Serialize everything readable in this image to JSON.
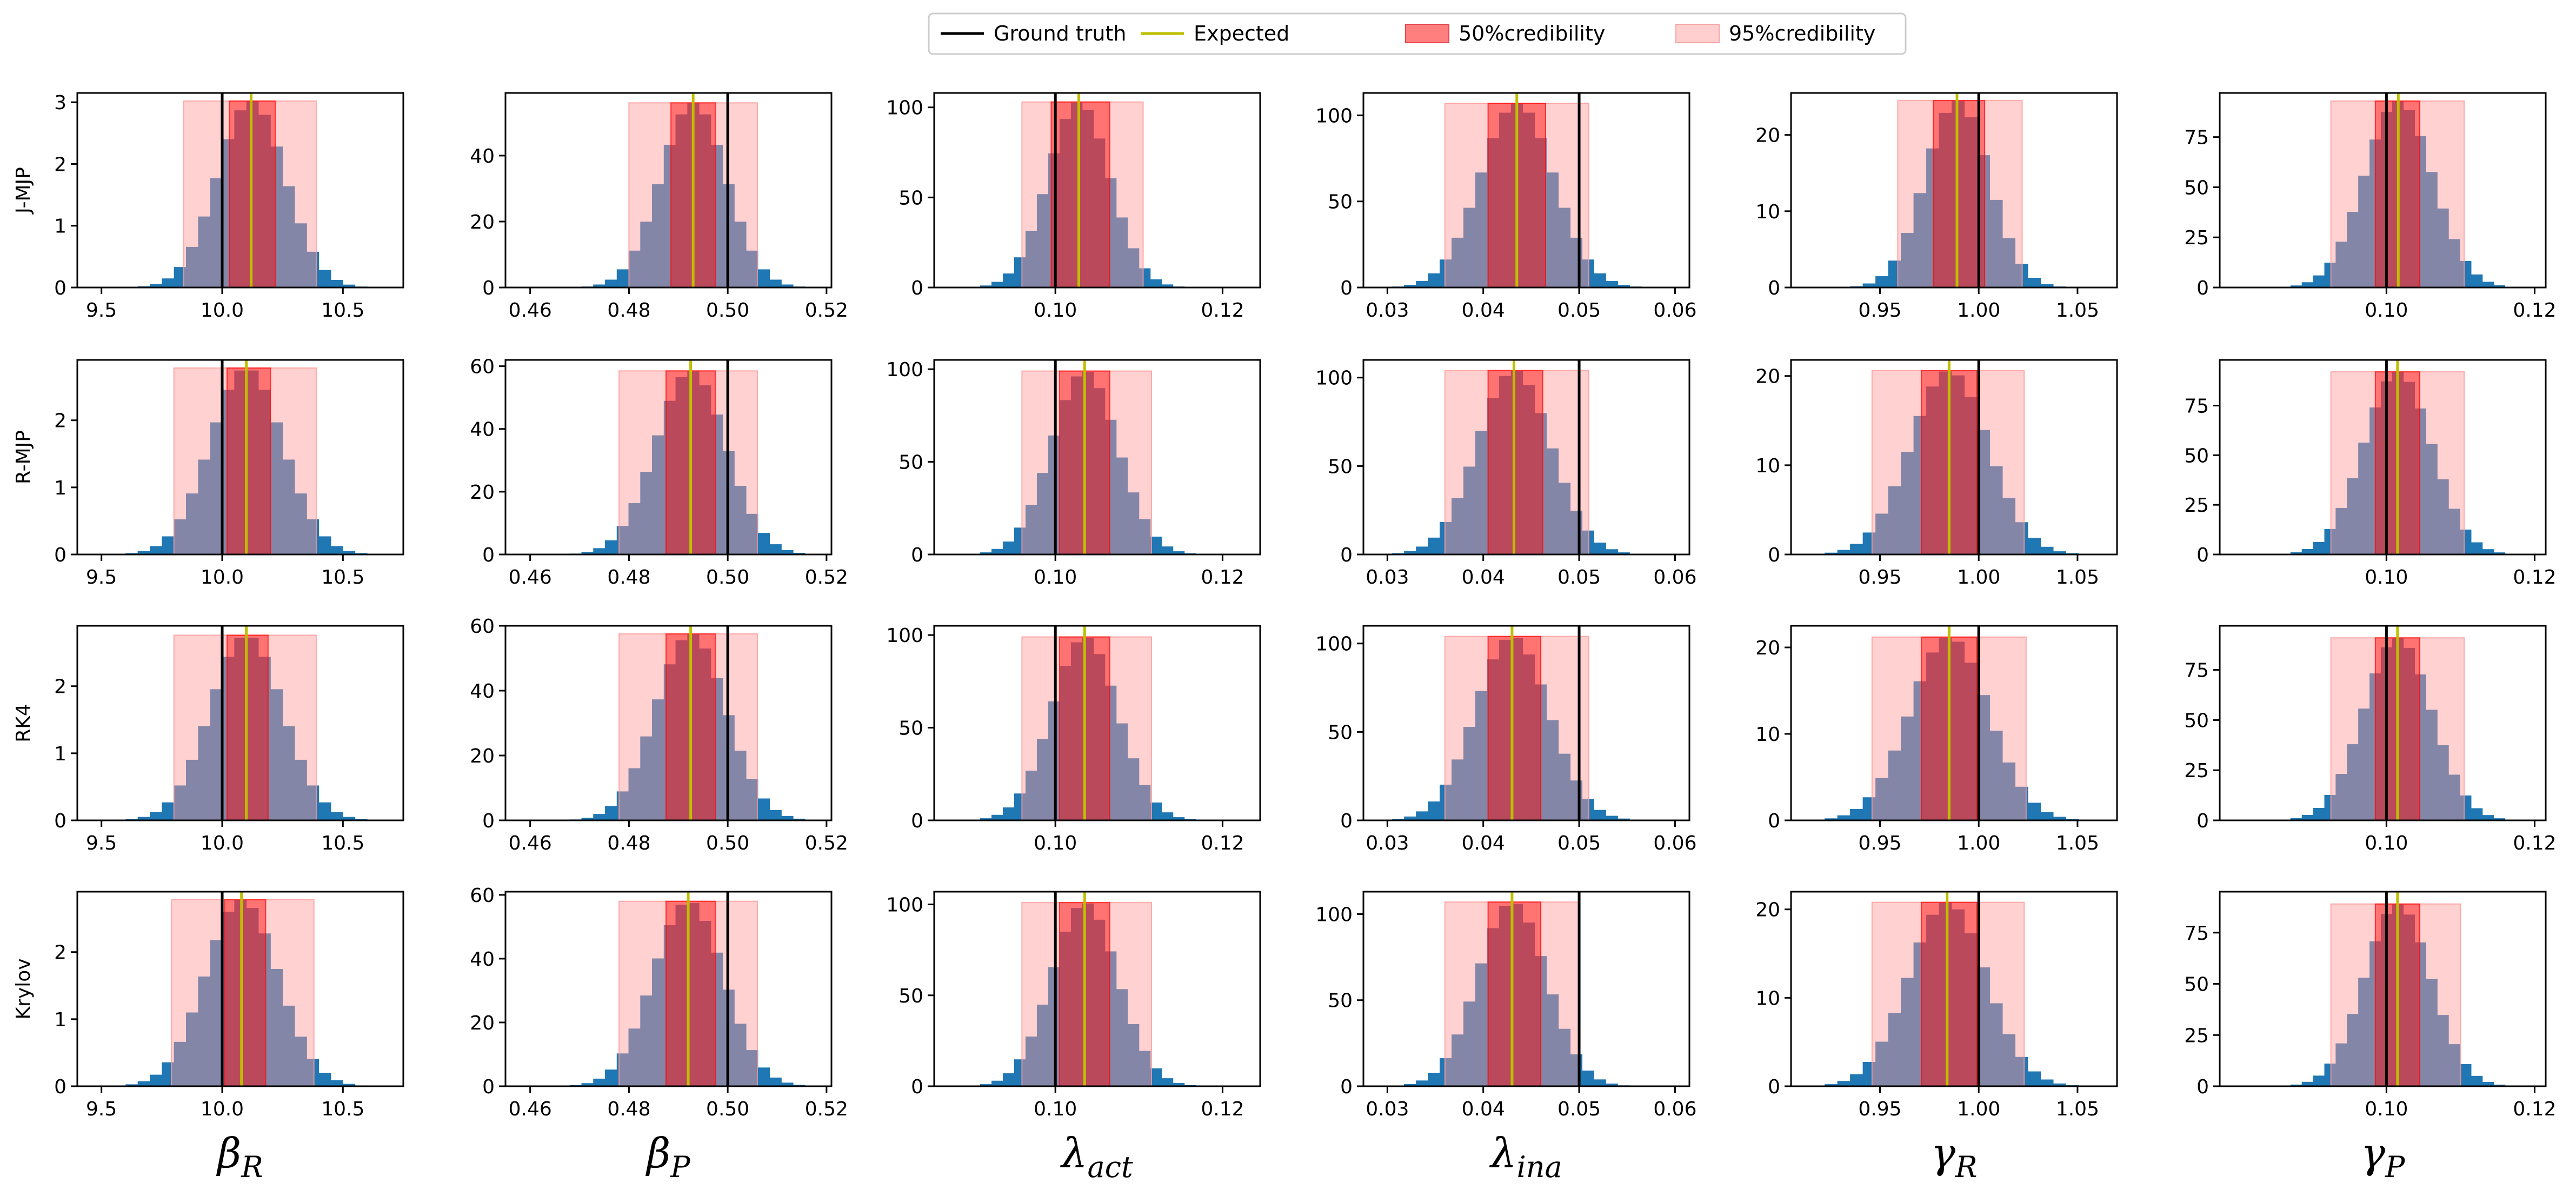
{
  "chart_data": {
    "type": "histogram-grid",
    "legend": {
      "placement": "top-center",
      "entries": [
        {
          "label": "Ground truth",
          "kind": "line",
          "color": "#000000"
        },
        {
          "label": "Expected",
          "kind": "line",
          "color": "#bfbf00"
        },
        {
          "label": "50%credibility",
          "kind": "patch",
          "color": "#ff7f7f",
          "edge": "#e8474f"
        },
        {
          "label": "95%credibility",
          "kind": "patch",
          "color": "#ffcfcf",
          "edge": "#f6a6a6"
        }
      ]
    },
    "colors": {
      "histogram": "#1f77b4",
      "ground_truth": "#000000",
      "expected": "#bfbf00",
      "cred50": "#ff0000",
      "cred95": "#ff9999"
    },
    "row_labels": [
      "J-MJP",
      "R-MJP",
      "RK4",
      "Krylov"
    ],
    "columns": [
      {
        "base": "β",
        "sub": "R",
        "xlim": [
          9.4,
          10.75
        ],
        "xticks": [
          9.5,
          10.0,
          10.5
        ],
        "xtick_labels": [
          "9.5",
          "10.0",
          "10.5"
        ],
        "bins": [
          9.6,
          10.65
        ],
        "truth": 10.0
      },
      {
        "base": "β",
        "sub": "P",
        "xlim": [
          0.455,
          0.521
        ],
        "xticks": [
          0.46,
          0.48,
          0.5,
          0.52
        ],
        "xtick_labels": [
          "0.46",
          "0.48",
          "0.50",
          "0.52"
        ],
        "bins": [
          0.468,
          0.518
        ],
        "truth": 0.5
      },
      {
        "base": "λ",
        "sub": "act",
        "xlim": [
          0.0855,
          0.1245
        ],
        "xticks": [
          0.1,
          0.12
        ],
        "xtick_labels": [
          "0.10",
          "0.12"
        ],
        "bins": [
          0.091,
          0.1195
        ],
        "truth": 0.1
      },
      {
        "base": "λ",
        "sub": "ina",
        "xlim": [
          0.0275,
          0.0615
        ],
        "xticks": [
          0.03,
          0.04,
          0.05,
          0.06
        ],
        "xtick_labels": [
          "0.03",
          "0.04",
          "0.05",
          "0.06"
        ],
        "bins": [
          0.0305,
          0.0565
        ],
        "truth": 0.05
      },
      {
        "base": "γ",
        "sub": "R",
        "xlim": [
          0.905,
          1.07
        ],
        "xticks": [
          0.95,
          1.0,
          1.05
        ],
        "xtick_labels": [
          "0.95",
          "1.00",
          "1.05"
        ],
        "bins": [
          0.922,
          1.057
        ],
        "truth": 1.0
      },
      {
        "base": "γ",
        "sub": "P",
        "xlim": [
          0.0775,
          0.1215
        ],
        "xticks": [
          0.1,
          0.12
        ],
        "xtick_labels": [
          "0.10",
          "0.12"
        ],
        "bins": [
          0.084,
          0.116
        ],
        "truth": 0.1
      }
    ],
    "panels": [
      [
        {
          "ylim": [
            0,
            3.15
          ],
          "yticks": [
            0,
            1,
            2,
            3
          ],
          "ytick_labels": [
            "0",
            "1",
            "2",
            "3"
          ],
          "peak": 3.02,
          "expected": 10.12,
          "ci50": [
            10.03,
            10.22
          ],
          "ci95": [
            9.84,
            10.39
          ]
        },
        {
          "ylim": [
            0,
            59
          ],
          "yticks": [
            0,
            20,
            40
          ],
          "ytick_labels": [
            "0",
            "20",
            "40"
          ],
          "peak": 56,
          "expected": 0.493,
          "ci50": [
            0.4885,
            0.4975
          ],
          "ci95": [
            0.48,
            0.506
          ]
        },
        {
          "ylim": [
            0,
            108
          ],
          "yticks": [
            0,
            50,
            100
          ],
          "ytick_labels": [
            "0",
            "50",
            "100"
          ],
          "peak": 103,
          "expected": 0.1028,
          "ci50": [
            0.0995,
            0.1065
          ],
          "ci95": [
            0.096,
            0.1105
          ]
        },
        {
          "ylim": [
            0,
            113
          ],
          "yticks": [
            0,
            50,
            100
          ],
          "ytick_labels": [
            "0",
            "50",
            "100"
          ],
          "peak": 107,
          "expected": 0.0435,
          "ci50": [
            0.0405,
            0.0465
          ],
          "ci95": [
            0.036,
            0.051
          ]
        },
        {
          "ylim": [
            0,
            25.5
          ],
          "yticks": [
            0,
            10,
            20
          ],
          "ytick_labels": [
            "0",
            "10",
            "20"
          ],
          "peak": 24.5,
          "expected": 0.989,
          "ci50": [
            0.977,
            1.003
          ],
          "ci95": [
            0.959,
            1.022
          ]
        },
        {
          "ylim": [
            0,
            97
          ],
          "yticks": [
            0,
            25,
            50,
            75
          ],
          "ytick_labels": [
            "0",
            "25",
            "50",
            "75"
          ],
          "peak": 93,
          "expected": 0.1016,
          "ci50": [
            0.0985,
            0.1045
          ],
          "ci95": [
            0.0925,
            0.1105
          ]
        }
      ],
      [
        {
          "ylim": [
            0,
            2.9
          ],
          "yticks": [
            0,
            1,
            2
          ],
          "ytick_labels": [
            "0",
            "1",
            "2"
          ],
          "peak": 2.78,
          "expected": 10.1,
          "ci50": [
            10.02,
            10.2
          ],
          "ci95": [
            9.8,
            10.39
          ]
        },
        {
          "ylim": [
            0,
            62
          ],
          "yticks": [
            0,
            20,
            40,
            60
          ],
          "ytick_labels": [
            "0",
            "20",
            "40",
            "60"
          ],
          "peak": 58.5,
          "expected": 0.4925,
          "ci50": [
            0.4875,
            0.4975
          ],
          "ci95": [
            0.478,
            0.506
          ]
        },
        {
          "ylim": [
            0,
            105
          ],
          "yticks": [
            0,
            50,
            100
          ],
          "ytick_labels": [
            "0",
            "50",
            "100"
          ],
          "peak": 99,
          "expected": 0.1035,
          "ci50": [
            0.1005,
            0.1065
          ],
          "ci95": [
            0.096,
            0.1115
          ]
        },
        {
          "ylim": [
            0,
            110
          ],
          "yticks": [
            0,
            50,
            100
          ],
          "ytick_labels": [
            "0",
            "50",
            "100"
          ],
          "peak": 104,
          "expected": 0.0432,
          "ci50": [
            0.0405,
            0.0462
          ],
          "ci95": [
            0.036,
            0.051
          ]
        },
        {
          "ylim": [
            0,
            21.8
          ],
          "yticks": [
            0,
            10,
            20
          ],
          "ytick_labels": [
            "0",
            "10",
            "20"
          ],
          "peak": 20.6,
          "expected": 0.985,
          "ci50": [
            0.971,
            0.999
          ],
          "ci95": [
            0.946,
            1.023
          ]
        },
        {
          "ylim": [
            0,
            98
          ],
          "yticks": [
            0,
            25,
            50,
            75
          ],
          "ytick_labels": [
            "0",
            "25",
            "50",
            "75"
          ],
          "peak": 92,
          "expected": 0.1015,
          "ci50": [
            0.0985,
            0.1045
          ],
          "ci95": [
            0.0925,
            0.1105
          ]
        }
      ],
      [
        {
          "ylim": [
            0,
            2.9
          ],
          "yticks": [
            0,
            1,
            2
          ],
          "ytick_labels": [
            "0",
            "1",
            "2"
          ],
          "peak": 2.76,
          "expected": 10.1,
          "ci50": [
            10.02,
            10.19
          ],
          "ci95": [
            9.8,
            10.39
          ]
        },
        {
          "ylim": [
            0,
            60
          ],
          "yticks": [
            0,
            20,
            40,
            60
          ],
          "ytick_labels": [
            "0",
            "20",
            "40",
            "60"
          ],
          "peak": 57.5,
          "expected": 0.4925,
          "ci50": [
            0.4875,
            0.4975
          ],
          "ci95": [
            0.478,
            0.506
          ]
        },
        {
          "ylim": [
            0,
            105
          ],
          "yticks": [
            0,
            50,
            100
          ],
          "ytick_labels": [
            "0",
            "50",
            "100"
          ],
          "peak": 99,
          "expected": 0.1035,
          "ci50": [
            0.1005,
            0.1065
          ],
          "ci95": [
            0.096,
            0.1115
          ]
        },
        {
          "ylim": [
            0,
            110
          ],
          "yticks": [
            0,
            50,
            100
          ],
          "ytick_labels": [
            "0",
            "50",
            "100"
          ],
          "peak": 104,
          "expected": 0.043,
          "ci50": [
            0.0405,
            0.046
          ],
          "ci95": [
            0.036,
            0.051
          ]
        },
        {
          "ylim": [
            0,
            22.5
          ],
          "yticks": [
            0,
            10,
            20
          ],
          "ytick_labels": [
            "0",
            "10",
            "20"
          ],
          "peak": 21.2,
          "expected": 0.985,
          "ci50": [
            0.971,
            0.999
          ],
          "ci95": [
            0.946,
            1.024
          ]
        },
        {
          "ylim": [
            0,
            97
          ],
          "yticks": [
            0,
            25,
            50,
            75
          ],
          "ytick_labels": [
            "0",
            "25",
            "50",
            "75"
          ],
          "peak": 91,
          "expected": 0.1015,
          "ci50": [
            0.0985,
            0.1045
          ],
          "ci95": [
            0.0925,
            0.1105
          ]
        }
      ],
      [
        {
          "ylim": [
            0,
            2.9
          ],
          "yticks": [
            0,
            1,
            2
          ],
          "ytick_labels": [
            "0",
            "1",
            "2"
          ],
          "peak": 2.78,
          "expected": 10.08,
          "ci50": [
            10.01,
            10.18
          ],
          "ci95": [
            9.79,
            10.38
          ]
        },
        {
          "ylim": [
            0,
            61
          ],
          "yticks": [
            0,
            20,
            40,
            60
          ],
          "ytick_labels": [
            "0",
            "20",
            "40",
            "60"
          ],
          "peak": 58,
          "expected": 0.492,
          "ci50": [
            0.4875,
            0.4975
          ],
          "ci95": [
            0.478,
            0.506
          ]
        },
        {
          "ylim": [
            0,
            107
          ],
          "yticks": [
            0,
            50,
            100
          ],
          "ytick_labels": [
            "0",
            "50",
            "100"
          ],
          "peak": 101,
          "expected": 0.1035,
          "ci50": [
            0.1005,
            0.1065
          ],
          "ci95": [
            0.096,
            0.1115
          ]
        },
        {
          "ylim": [
            0,
            113
          ],
          "yticks": [
            0,
            50,
            100
          ],
          "ytick_labels": [
            "0",
            "50",
            "100"
          ],
          "peak": 107,
          "expected": 0.043,
          "ci50": [
            0.0405,
            0.046
          ],
          "ci95": [
            0.036,
            0.05
          ]
        },
        {
          "ylim": [
            0,
            22
          ],
          "yticks": [
            0,
            10,
            20
          ],
          "ytick_labels": [
            "0",
            "10",
            "20"
          ],
          "peak": 20.8,
          "expected": 0.984,
          "ci50": [
            0.971,
            0.999
          ],
          "ci95": [
            0.946,
            1.023
          ]
        },
        {
          "ylim": [
            0,
            95
          ],
          "yticks": [
            0,
            25,
            50,
            75
          ],
          "ytick_labels": [
            "0",
            "25",
            "50",
            "75"
          ],
          "peak": 89,
          "expected": 0.1015,
          "ci50": [
            0.0985,
            0.1045
          ],
          "ci95": [
            0.0925,
            0.11
          ]
        }
      ]
    ]
  }
}
